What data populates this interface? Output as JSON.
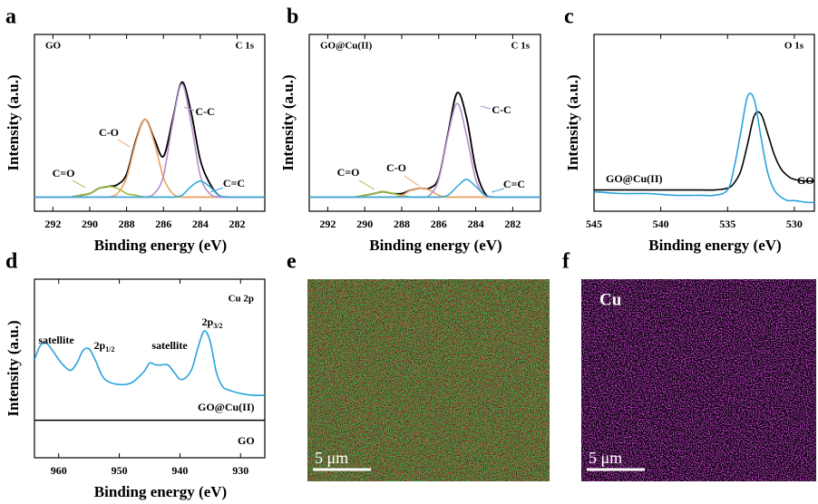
{
  "chart_data": [
    {
      "type": "line",
      "panel": "a",
      "sample_label": "GO",
      "region_label": "C 1s",
      "xlabel": "Binding energy (eV)",
      "ylabel": "Intensity (a.u.)",
      "xlim": [
        293,
        280.5
      ],
      "xticks": [
        292,
        290,
        288,
        286,
        284,
        282
      ],
      "ylim": [
        0,
        100
      ],
      "x": [
        293,
        292.5,
        292,
        291.5,
        291,
        290.5,
        290,
        289.5,
        289,
        288.5,
        288,
        287.5,
        287,
        286.5,
        286,
        285.5,
        285,
        284.5,
        284,
        283.5,
        283,
        282.5,
        282,
        281.5,
        281,
        280.5
      ],
      "series": [
        {
          "color": "#000000",
          "values": [
            8,
            8,
            8,
            8,
            8,
            9,
            10,
            13,
            14,
            15,
            21,
            40,
            52,
            41,
            31,
            52,
            73,
            56,
            29,
            16,
            9,
            8,
            8,
            8,
            8,
            8
          ]
        },
        {
          "name": "C=O",
          "color": "#9cbd3c",
          "values": [
            8,
            8,
            8,
            8,
            8,
            9,
            10,
            13,
            14,
            13,
            10,
            9,
            8,
            8,
            8,
            8,
            8,
            8,
            8,
            8,
            8,
            8,
            8,
            8,
            8,
            8
          ]
        },
        {
          "name": "C-O",
          "color": "#f0a064",
          "values": [
            8,
            8,
            8,
            8,
            8,
            8,
            8,
            8,
            8,
            10,
            19,
            39,
            52,
            39,
            19,
            10,
            8,
            8,
            8,
            8,
            8,
            8,
            8,
            8,
            8,
            8
          ]
        },
        {
          "name": "C-C",
          "color": "#b490c8",
          "values": [
            8,
            8,
            8,
            8,
            8,
            8,
            8,
            8,
            8,
            8,
            8,
            8,
            8,
            10,
            20,
            50,
            72,
            50,
            20,
            10,
            8,
            8,
            8,
            8,
            8,
            8
          ]
        },
        {
          "name": "C=C",
          "color": "#3aa8dc",
          "values": [
            8,
            8,
            8,
            8,
            8,
            8,
            8,
            8,
            8,
            8,
            8,
            8,
            8,
            8,
            8,
            8,
            9,
            14,
            17,
            14,
            9,
            8,
            8,
            8,
            8,
            8
          ]
        }
      ]
    },
    {
      "type": "line",
      "panel": "b",
      "sample_label": "GO@Cu(II)",
      "region_label": "C 1s",
      "xlabel": "Binding energy (eV)",
      "ylabel": "Intensity (a.u.)",
      "xlim": [
        293,
        280.5
      ],
      "xticks": [
        292,
        290,
        288,
        286,
        284,
        282
      ],
      "ylim": [
        0,
        100
      ],
      "x": [
        293,
        292.5,
        292,
        291.5,
        291,
        290.5,
        290,
        289.5,
        289,
        288.5,
        288,
        287.5,
        287,
        286.5,
        286,
        285.5,
        285,
        284.5,
        284,
        283.5,
        283,
        282.5,
        282,
        281.5,
        281,
        280.5
      ],
      "series": [
        {
          "color": "#000000",
          "values": [
            8,
            8,
            8,
            8,
            8,
            8,
            9,
            10,
            11,
            10,
            10,
            12,
            13,
            13,
            19,
            44,
            67,
            53,
            24,
            10,
            8,
            8,
            8,
            8,
            8,
            8
          ]
        },
        {
          "name": "C=O",
          "color": "#9cbd3c",
          "values": [
            8,
            8,
            8,
            8,
            8,
            8,
            9,
            10,
            11,
            10,
            9,
            8,
            8,
            8,
            8,
            8,
            8,
            8,
            8,
            8,
            8,
            8,
            8,
            8,
            8,
            8
          ]
        },
        {
          "name": "C-O",
          "color": "#f0a064",
          "values": [
            8,
            8,
            8,
            8,
            8,
            8,
            8,
            8,
            8,
            8,
            9,
            12,
            13,
            12,
            9,
            8,
            8,
            8,
            8,
            8,
            8,
            8,
            8,
            8,
            8,
            8
          ]
        },
        {
          "name": "C-C",
          "color": "#b490c8",
          "values": [
            8,
            8,
            8,
            8,
            8,
            8,
            8,
            8,
            8,
            8,
            8,
            8,
            8,
            9,
            18,
            43,
            61,
            43,
            18,
            9,
            8,
            8,
            8,
            8,
            8,
            8
          ]
        },
        {
          "name": "C=C",
          "color": "#3aa8dc",
          "values": [
            8,
            8,
            8,
            8,
            8,
            8,
            8,
            8,
            8,
            8,
            8,
            8,
            8,
            8,
            8,
            9,
            14,
            18,
            14,
            9,
            8,
            8,
            8,
            8,
            8,
            8
          ]
        }
      ]
    },
    {
      "type": "line",
      "panel": "c",
      "region_label": "O 1s",
      "xlabel": "Binding energy (eV)",
      "ylabel": "Intensity (a.u.)",
      "xlim": [
        545,
        528.5
      ],
      "xticks": [
        545,
        540,
        535,
        530
      ],
      "ylim": [
        0,
        100
      ],
      "x": [
        545,
        543,
        541,
        539,
        537,
        536,
        535,
        534.5,
        534,
        533.5,
        533,
        532.5,
        532,
        531.5,
        531,
        530.5,
        530,
        529,
        528
      ],
      "series": [
        {
          "name": "GO",
          "color": "#000000",
          "values": [
            12,
            12,
            12,
            12,
            12,
            12,
            13,
            16,
            23,
            38,
            54,
            55,
            44,
            32,
            24,
            20,
            18,
            17,
            17
          ]
        },
        {
          "name": "GO@Cu(II)",
          "color": "#29a3dc",
          "values": [
            11,
            10,
            10,
            9,
            9,
            9,
            12,
            25,
            45,
            65,
            63,
            42,
            22,
            12,
            8,
            6,
            6,
            5,
            5
          ]
        }
      ]
    },
    {
      "type": "line",
      "panel": "d",
      "region_label": "Cu 2p",
      "xlabel": "Binding energy (eV)",
      "ylabel": "Intensity (a.u.)",
      "xlim": [
        964,
        926
      ],
      "xticks": [
        960,
        950,
        940,
        930
      ],
      "ylim": [
        0,
        100
      ],
      "x": [
        964,
        963,
        962,
        961,
        960,
        959,
        958,
        957,
        956,
        955,
        954,
        953,
        952,
        950,
        948,
        946,
        945,
        944,
        943,
        942,
        941,
        940,
        939,
        938,
        937,
        936,
        935,
        934,
        933,
        932,
        930,
        928,
        926
      ],
      "series": [
        {
          "name": "GO@Cu(II)",
          "color": "#29a3dc",
          "values": [
            55,
            63,
            64,
            60,
            55,
            51,
            49,
            53,
            60,
            61,
            55,
            47,
            43,
            41,
            42,
            48,
            53,
            52,
            52,
            52,
            48,
            44,
            45,
            50,
            62,
            71,
            65,
            48,
            40,
            38,
            36,
            35,
            35
          ]
        },
        {
          "name": "GO",
          "color": "#000000",
          "values": [
            21,
            21,
            21,
            21,
            21,
            21,
            21,
            21,
            21,
            21,
            21,
            21,
            21,
            21,
            21,
            21,
            21,
            21,
            21,
            21,
            21,
            21,
            21,
            21,
            21,
            21,
            21,
            21,
            21,
            21,
            21,
            21,
            21
          ]
        }
      ],
      "annotations": [
        {
          "text": "satellite"
        },
        {
          "text": "2p",
          "sub": "1/2"
        },
        {
          "text": "satellite"
        },
        {
          "text": "2p",
          "sub": "3/2"
        }
      ]
    },
    {
      "type": "image",
      "panel": "e",
      "colors": [
        "#d83a2e",
        "#36b04c"
      ],
      "scale_bar": "5 μm"
    },
    {
      "type": "image",
      "panel": "f",
      "label": "Cu",
      "colors": [
        "#c440cc"
      ],
      "scale_bar": "5 μm"
    }
  ]
}
